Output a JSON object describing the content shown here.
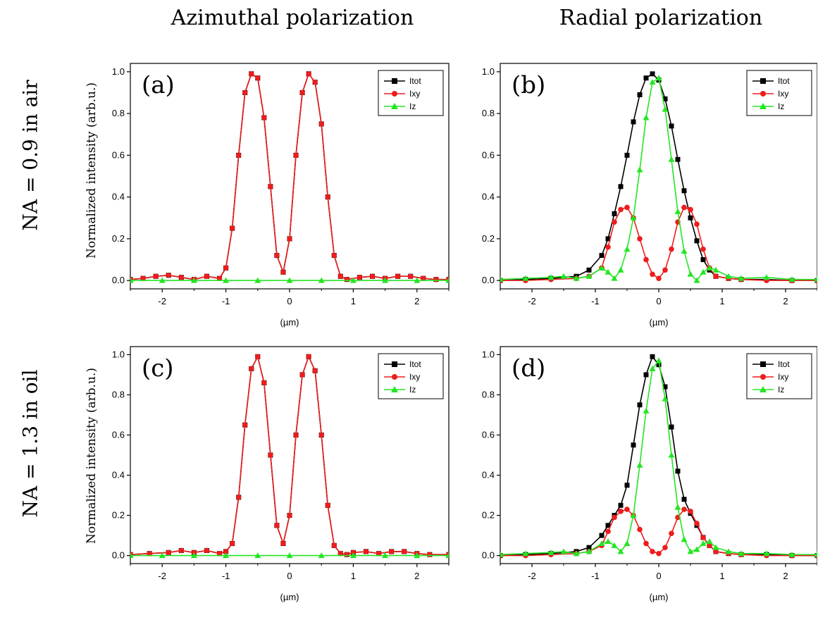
{
  "header": {
    "col_titles": [
      "Azimuthal polarization",
      "Radial polarization"
    ],
    "row_titles": [
      "NA = 0.9 in air",
      "NA = 1.3 in oil"
    ],
    "ylabel": "Normalized intensity (arb.u.)"
  },
  "colors": {
    "Itot": "#000000",
    "Ixy": "#ee1c1c",
    "Iz": "#22e622"
  },
  "chart_data": [
    {
      "type": "line",
      "label": "(a)",
      "xlabel": "(µm)",
      "ylabel": "Normalized intensity (arb.u.)",
      "xlim": [
        -2.5,
        2.5
      ],
      "ylim": [
        -0.04,
        1.04
      ],
      "xticks": [
        -2,
        -1,
        0,
        1,
        2
      ],
      "yticks": [
        0.0,
        0.2,
        0.4,
        0.6,
        0.8,
        1.0
      ],
      "legend": "top-right",
      "series": [
        {
          "name": "Itot",
          "marker": "square",
          "x": [
            -2.5,
            -2.3,
            -2.1,
            -1.9,
            -1.7,
            -1.5,
            -1.3,
            -1.1,
            -1.0,
            -0.9,
            -0.8,
            -0.7,
            -0.6,
            -0.5,
            -0.4,
            -0.3,
            -0.2,
            -0.1,
            0.0,
            0.1,
            0.2,
            0.3,
            0.4,
            0.5,
            0.6,
            0.7,
            0.8,
            0.9,
            1.1,
            1.3,
            1.5,
            1.7,
            1.9,
            2.1,
            2.3,
            2.5
          ],
          "y": [
            0.005,
            0.01,
            0.02,
            0.025,
            0.015,
            0.005,
            0.02,
            0.01,
            0.06,
            0.25,
            0.6,
            0.9,
            0.99,
            0.97,
            0.78,
            0.45,
            0.12,
            0.04,
            0.2,
            0.6,
            0.9,
            0.99,
            0.95,
            0.75,
            0.4,
            0.12,
            0.02,
            0.005,
            0.015,
            0.02,
            0.01,
            0.02,
            0.02,
            0.01,
            0.005,
            0.005
          ]
        },
        {
          "name": "Ixy",
          "marker": "circle",
          "x": [
            -2.5,
            -2.3,
            -2.1,
            -1.9,
            -1.7,
            -1.5,
            -1.3,
            -1.1,
            -1.0,
            -0.9,
            -0.8,
            -0.7,
            -0.6,
            -0.5,
            -0.4,
            -0.3,
            -0.2,
            -0.1,
            0.0,
            0.1,
            0.2,
            0.3,
            0.4,
            0.5,
            0.6,
            0.7,
            0.8,
            0.9,
            1.1,
            1.3,
            1.5,
            1.7,
            1.9,
            2.1,
            2.3,
            2.5
          ],
          "y": [
            0.005,
            0.01,
            0.02,
            0.025,
            0.015,
            0.005,
            0.02,
            0.01,
            0.06,
            0.25,
            0.6,
            0.9,
            0.99,
            0.97,
            0.78,
            0.45,
            0.12,
            0.04,
            0.2,
            0.6,
            0.9,
            0.99,
            0.95,
            0.75,
            0.4,
            0.12,
            0.02,
            0.005,
            0.015,
            0.02,
            0.01,
            0.02,
            0.02,
            0.01,
            0.005,
            0.005
          ]
        },
        {
          "name": "Iz",
          "marker": "triangle",
          "x": [
            -2.5,
            -2.0,
            -1.5,
            -1.0,
            -0.5,
            0.0,
            0.5,
            1.0,
            1.5,
            2.0,
            2.5
          ],
          "y": [
            0,
            0,
            0,
            0,
            0,
            0,
            0,
            0,
            0,
            0,
            0
          ]
        }
      ]
    },
    {
      "type": "line",
      "label": "(b)",
      "xlabel": "(µm)",
      "ylabel": "",
      "xlim": [
        -2.5,
        2.5
      ],
      "ylim": [
        -0.04,
        1.04
      ],
      "xticks": [
        -2,
        -1,
        0,
        1,
        2
      ],
      "yticks": [
        0.0,
        0.2,
        0.4,
        0.6,
        0.8,
        1.0
      ],
      "legend": "top-right",
      "series": [
        {
          "name": "Itot",
          "marker": "square",
          "x": [
            -2.5,
            -2.1,
            -1.7,
            -1.3,
            -1.1,
            -0.9,
            -0.8,
            -0.7,
            -0.6,
            -0.5,
            -0.4,
            -0.3,
            -0.2,
            -0.1,
            0.0,
            0.1,
            0.2,
            0.3,
            0.4,
            0.5,
            0.6,
            0.7,
            0.8,
            0.9,
            1.1,
            1.3,
            1.7,
            2.1,
            2.5
          ],
          "y": [
            0.0,
            0.005,
            0.01,
            0.02,
            0.05,
            0.12,
            0.2,
            0.32,
            0.45,
            0.6,
            0.76,
            0.89,
            0.97,
            0.99,
            0.96,
            0.87,
            0.74,
            0.58,
            0.43,
            0.3,
            0.19,
            0.1,
            0.05,
            0.02,
            0.01,
            0.005,
            0.005,
            0.0,
            0.0
          ]
        },
        {
          "name": "Ixy",
          "marker": "circle",
          "x": [
            -2.5,
            -2.1,
            -1.7,
            -1.3,
            -1.1,
            -0.9,
            -0.8,
            -0.7,
            -0.6,
            -0.5,
            -0.4,
            -0.3,
            -0.2,
            -0.1,
            0.0,
            0.1,
            0.2,
            0.3,
            0.4,
            0.5,
            0.6,
            0.7,
            0.8,
            0.9,
            1.1,
            1.3,
            1.7,
            2.1,
            2.5
          ],
          "y": [
            0.0,
            0.0,
            0.005,
            0.01,
            0.02,
            0.06,
            0.16,
            0.28,
            0.34,
            0.35,
            0.3,
            0.2,
            0.1,
            0.03,
            0.01,
            0.05,
            0.15,
            0.28,
            0.35,
            0.34,
            0.27,
            0.15,
            0.06,
            0.02,
            0.01,
            0.005,
            0.0,
            0.0,
            0.0
          ]
        },
        {
          "name": "Iz",
          "marker": "triangle",
          "x": [
            -2.5,
            -2.1,
            -1.7,
            -1.5,
            -1.3,
            -1.1,
            -0.9,
            -0.8,
            -0.7,
            -0.6,
            -0.5,
            -0.4,
            -0.3,
            -0.2,
            -0.1,
            0.0,
            0.1,
            0.2,
            0.3,
            0.4,
            0.5,
            0.6,
            0.7,
            0.8,
            0.9,
            1.1,
            1.3,
            1.7,
            2.1,
            2.5
          ],
          "y": [
            0.005,
            0.01,
            0.015,
            0.02,
            0.01,
            0.02,
            0.06,
            0.04,
            0.01,
            0.05,
            0.15,
            0.3,
            0.53,
            0.78,
            0.95,
            0.97,
            0.82,
            0.58,
            0.33,
            0.14,
            0.03,
            0.0,
            0.04,
            0.06,
            0.05,
            0.02,
            0.01,
            0.015,
            0.005,
            0.005
          ]
        }
      ]
    },
    {
      "type": "line",
      "label": "(c)",
      "xlabel": "(µm)",
      "ylabel": "Normalized intensity (arb.u.)",
      "xlim": [
        -2.5,
        2.5
      ],
      "ylim": [
        -0.04,
        1.04
      ],
      "xticks": [
        -2,
        -1,
        0,
        1,
        2
      ],
      "yticks": [
        0.0,
        0.2,
        0.4,
        0.6,
        0.8,
        1.0
      ],
      "legend": "top-right",
      "series": [
        {
          "name": "Itot",
          "marker": "square",
          "x": [
            -2.5,
            -2.2,
            -1.9,
            -1.7,
            -1.5,
            -1.3,
            -1.1,
            -1.0,
            -0.9,
            -0.8,
            -0.7,
            -0.6,
            -0.5,
            -0.4,
            -0.3,
            -0.2,
            -0.1,
            0.0,
            0.1,
            0.2,
            0.3,
            0.4,
            0.5,
            0.6,
            0.7,
            0.8,
            0.9,
            1.0,
            1.2,
            1.4,
            1.6,
            1.8,
            2.0,
            2.2,
            2.5
          ],
          "y": [
            0.005,
            0.01,
            0.015,
            0.025,
            0.015,
            0.025,
            0.01,
            0.02,
            0.06,
            0.29,
            0.65,
            0.93,
            0.99,
            0.86,
            0.5,
            0.15,
            0.06,
            0.2,
            0.6,
            0.9,
            0.99,
            0.92,
            0.6,
            0.25,
            0.05,
            0.01,
            0.005,
            0.015,
            0.02,
            0.01,
            0.02,
            0.02,
            0.01,
            0.005,
            0.005
          ]
        },
        {
          "name": "Ixy",
          "marker": "circle",
          "x": [
            -2.5,
            -2.2,
            -1.9,
            -1.7,
            -1.5,
            -1.3,
            -1.1,
            -1.0,
            -0.9,
            -0.8,
            -0.7,
            -0.6,
            -0.5,
            -0.4,
            -0.3,
            -0.2,
            -0.1,
            0.0,
            0.1,
            0.2,
            0.3,
            0.4,
            0.5,
            0.6,
            0.7,
            0.8,
            0.9,
            1.0,
            1.2,
            1.4,
            1.6,
            1.8,
            2.0,
            2.2,
            2.5
          ],
          "y": [
            0.005,
            0.01,
            0.015,
            0.025,
            0.015,
            0.025,
            0.01,
            0.02,
            0.06,
            0.29,
            0.65,
            0.93,
            0.99,
            0.86,
            0.5,
            0.15,
            0.06,
            0.2,
            0.6,
            0.9,
            0.99,
            0.92,
            0.6,
            0.25,
            0.05,
            0.01,
            0.005,
            0.015,
            0.02,
            0.01,
            0.02,
            0.02,
            0.01,
            0.005,
            0.005
          ]
        },
        {
          "name": "Iz",
          "marker": "triangle",
          "x": [
            -2.5,
            -2.0,
            -1.5,
            -1.0,
            -0.5,
            0.0,
            0.5,
            1.0,
            1.5,
            2.0,
            2.5
          ],
          "y": [
            0,
            0,
            0,
            0,
            0,
            0,
            0,
            0,
            0,
            0,
            0
          ]
        }
      ]
    },
    {
      "type": "line",
      "label": "(d)",
      "xlabel": "(µm)",
      "ylabel": "",
      "xlim": [
        -2.5,
        2.5
      ],
      "ylim": [
        -0.04,
        1.04
      ],
      "xticks": [
        -2,
        -1,
        0,
        1,
        2
      ],
      "yticks": [
        0.0,
        0.2,
        0.4,
        0.6,
        0.8,
        1.0
      ],
      "legend": "top-right",
      "series": [
        {
          "name": "Itot",
          "marker": "square",
          "x": [
            -2.5,
            -2.1,
            -1.7,
            -1.3,
            -1.1,
            -0.9,
            -0.8,
            -0.7,
            -0.6,
            -0.5,
            -0.4,
            -0.3,
            -0.2,
            -0.1,
            0.0,
            0.1,
            0.2,
            0.3,
            0.4,
            0.5,
            0.6,
            0.7,
            0.8,
            0.9,
            1.1,
            1.3,
            1.7,
            2.1,
            2.5
          ],
          "y": [
            0.0,
            0.005,
            0.01,
            0.02,
            0.04,
            0.1,
            0.15,
            0.2,
            0.25,
            0.35,
            0.55,
            0.75,
            0.9,
            0.99,
            0.95,
            0.84,
            0.64,
            0.42,
            0.28,
            0.21,
            0.15,
            0.09,
            0.05,
            0.02,
            0.01,
            0.005,
            0.005,
            0.0,
            0.0
          ]
        },
        {
          "name": "Ixy",
          "marker": "circle",
          "x": [
            -2.5,
            -2.1,
            -1.7,
            -1.3,
            -1.1,
            -0.9,
            -0.8,
            -0.7,
            -0.6,
            -0.5,
            -0.4,
            -0.3,
            -0.2,
            -0.1,
            0.0,
            0.1,
            0.2,
            0.3,
            0.4,
            0.5,
            0.6,
            0.7,
            0.8,
            0.9,
            1.1,
            1.3,
            1.7,
            2.1,
            2.5
          ],
          "y": [
            0.0,
            0.0,
            0.005,
            0.01,
            0.02,
            0.05,
            0.12,
            0.19,
            0.22,
            0.23,
            0.2,
            0.13,
            0.06,
            0.02,
            0.01,
            0.04,
            0.11,
            0.19,
            0.23,
            0.22,
            0.16,
            0.09,
            0.05,
            0.02,
            0.01,
            0.005,
            0.0,
            0.0,
            0.0
          ]
        },
        {
          "name": "Iz",
          "marker": "triangle",
          "x": [
            -2.5,
            -2.1,
            -1.7,
            -1.5,
            -1.3,
            -1.1,
            -0.9,
            -0.8,
            -0.7,
            -0.6,
            -0.5,
            -0.4,
            -0.3,
            -0.2,
            -0.1,
            0.0,
            0.1,
            0.2,
            0.3,
            0.4,
            0.5,
            0.6,
            0.7,
            0.8,
            0.9,
            1.1,
            1.3,
            1.7,
            2.1,
            2.5
          ],
          "y": [
            0.005,
            0.01,
            0.015,
            0.02,
            0.01,
            0.02,
            0.06,
            0.07,
            0.05,
            0.02,
            0.06,
            0.2,
            0.45,
            0.72,
            0.93,
            0.97,
            0.78,
            0.5,
            0.24,
            0.08,
            0.02,
            0.03,
            0.06,
            0.07,
            0.04,
            0.02,
            0.01,
            0.01,
            0.005,
            0.005
          ]
        }
      ]
    }
  ]
}
